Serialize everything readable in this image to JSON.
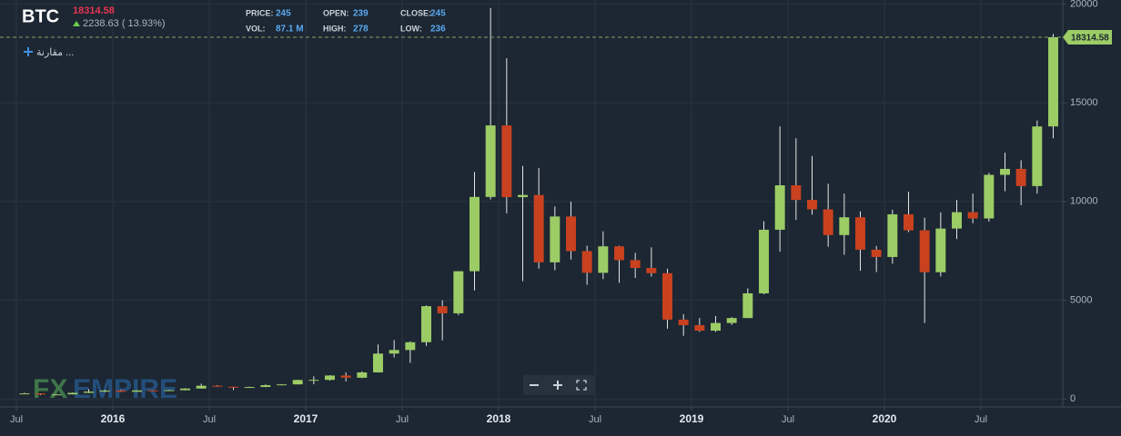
{
  "header": {
    "symbol": "BTC",
    "change_label": "2238.63 ( 13.93%)",
    "compare": "مقارنة ...",
    "watermark_fx": "FX",
    "watermark_brand": "EMPIRE",
    "stats": [
      {
        "label": "PRICE:",
        "value": 245
      },
      {
        "label": "VOL:",
        "value": "87.1 M"
      },
      {
        "label": "OPEN:",
        "value": 239
      },
      {
        "label": "HIGH:",
        "value": 278
      },
      {
        "label": "CLOSE:",
        "value": 245
      },
      {
        "label": "LOW:",
        "value": 236
      }
    ]
  },
  "chart_data": {
    "type": "candlestick",
    "last_price": 18314.58,
    "up_color": "#9ccc65",
    "down_color": "#c9411f",
    "grid": true,
    "ylim": [
      -400,
      20200
    ],
    "yticks": [
      0,
      5000,
      10000,
      15000,
      20000
    ],
    "xticks": [
      {
        "value": "2015-07",
        "label": "Jul"
      },
      {
        "value": "2016-01",
        "label": "2016"
      },
      {
        "value": "2016-07",
        "label": "Jul"
      },
      {
        "value": "2017-01",
        "label": "2017"
      },
      {
        "value": "2017-07",
        "label": "Jul"
      },
      {
        "value": "2018-01",
        "label": "2018"
      },
      {
        "value": "2018-07",
        "label": "Jul"
      },
      {
        "value": "2019-01",
        "label": "2019"
      },
      {
        "value": "2019-07",
        "label": "Jul"
      },
      {
        "value": "2020-01",
        "label": "2020"
      },
      {
        "value": "2020-07",
        "label": "Jul"
      }
    ],
    "x": [
      "2015-07",
      "2015-08",
      "2015-09",
      "2015-10",
      "2015-11",
      "2015-12",
      "2016-01",
      "2016-02",
      "2016-03",
      "2016-04",
      "2016-05",
      "2016-06",
      "2016-07",
      "2016-08",
      "2016-09",
      "2016-10",
      "2016-11",
      "2016-12",
      "2017-01",
      "2017-02",
      "2017-03",
      "2017-04",
      "2017-05",
      "2017-06",
      "2017-07",
      "2017-08",
      "2017-09",
      "2017-10",
      "2017-11",
      "2017-12",
      "2018-01",
      "2018-02",
      "2018-03",
      "2018-04",
      "2018-05",
      "2018-06",
      "2018-07",
      "2018-08",
      "2018-09",
      "2018-10",
      "2018-11",
      "2018-12",
      "2019-01",
      "2019-02",
      "2019-03",
      "2019-04",
      "2019-05",
      "2019-06",
      "2019-07",
      "2019-08",
      "2019-09",
      "2019-10",
      "2019-11",
      "2019-12",
      "2020-01",
      "2020-02",
      "2020-03",
      "2020-04",
      "2020-05",
      "2020-06",
      "2020-07",
      "2020-08",
      "2020-09",
      "2020-10",
      "2020-11"
    ],
    "open": [
      263,
      284,
      230,
      236,
      314,
      377,
      430,
      368,
      437,
      416,
      448,
      531,
      673,
      624,
      575,
      609,
      700,
      742,
      964,
      970,
      1190,
      1079,
      1348,
      2300,
      2480,
      2875,
      4700,
      4340,
      6470,
      10230,
      13850,
      10220,
      10330,
      6920,
      9240,
      7490,
      6390,
      7730,
      7030,
      6630,
      6370,
      4020,
      3740,
      3460,
      3850,
      4100,
      5350,
      8570,
      10820,
      10080,
      9600,
      8300,
      9200,
      7560,
      7190,
      9350,
      8540,
      6420,
      8630,
      9460,
      9140,
      11350,
      11650,
      10780,
      13800
    ],
    "high": [
      315,
      285,
      245,
      335,
      495,
      465,
      462,
      440,
      440,
      468,
      550,
      778,
      704,
      625,
      628,
      740,
      753,
      980,
      1150,
      1210,
      1350,
      1400,
      2760,
      2980,
      2920,
      4740,
      5000,
      6470,
      11500,
      19800,
      17250,
      11800,
      11700,
      9750,
      9990,
      7760,
      8490,
      7760,
      7400,
      7680,
      6600,
      4300,
      4100,
      4200,
      4150,
      5600,
      9000,
      13800,
      13200,
      12300,
      10900,
      10400,
      9500,
      7750,
      9580,
      10500,
      9180,
      9450,
      10080,
      10400,
      11450,
      12470,
      12090,
      14100,
      18480
    ],
    "low": [
      255,
      200,
      225,
      236,
      300,
      350,
      355,
      365,
      395,
      412,
      440,
      525,
      620,
      465,
      567,
      605,
      690,
      740,
      750,
      935,
      890,
      1060,
      1340,
      2100,
      1830,
      2690,
      2970,
      4250,
      5500,
      10100,
      9400,
      5970,
      6600,
      6520,
      7060,
      5780,
      6070,
      5880,
      6130,
      6200,
      3560,
      3200,
      3400,
      3400,
      3750,
      4100,
      5300,
      7460,
      9070,
      9330,
      7710,
      7300,
      6500,
      6430,
      6850,
      8450,
      3850,
      6200,
      8100,
      8900,
      8980,
      10520,
      9820,
      10400,
      13200
    ],
    "close": [
      284,
      230,
      236,
      314,
      377,
      430,
      368,
      437,
      416,
      448,
      531,
      673,
      624,
      575,
      609,
      700,
      742,
      964,
      970,
      1190,
      1079,
      1348,
      2300,
      2480,
      2875,
      4700,
      4340,
      6470,
      10230,
      13850,
      10220,
      10330,
      6920,
      9240,
      7490,
      6390,
      7730,
      7030,
      6630,
      6370,
      4020,
      3740,
      3460,
      3850,
      4100,
      5350,
      8570,
      10820,
      10080,
      9600,
      8300,
      9200,
      7560,
      7190,
      9350,
      8540,
      6420,
      8630,
      9460,
      9140,
      11350,
      11650,
      10780,
      13800,
      18314.58
    ]
  }
}
